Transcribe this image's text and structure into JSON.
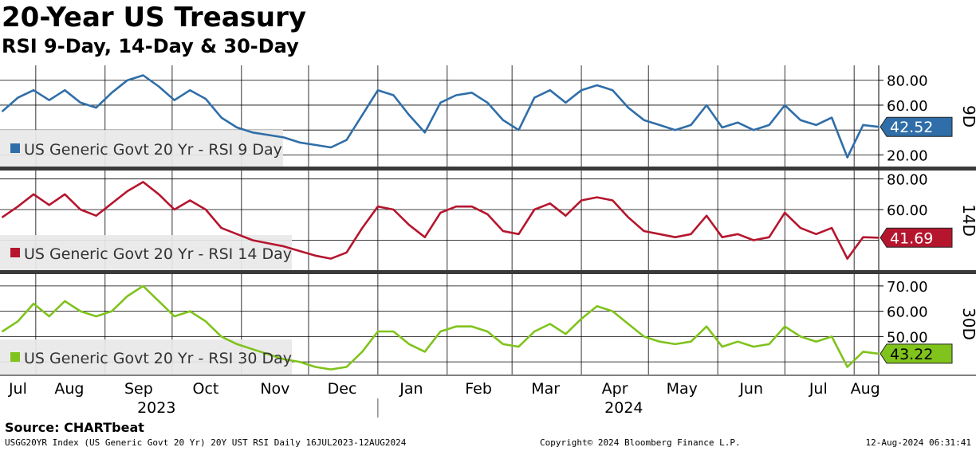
{
  "header": {
    "title": "20-Year US Treasury",
    "subtitle": "RSI 9-Day, 14-Day & 30-Day"
  },
  "footer": {
    "source": "Source: CHARTbeat",
    "ticker_info": "USGG20YR Index (US Generic Govt 20 Yr) 20Y UST RSI  Daily 16JUL2023-12AUG2024",
    "copyright": "Copyright© 2024 Bloomberg Finance L.P.",
    "timestamp": "12-Aug-2024 06:31:41"
  },
  "colors": {
    "rsi9": "#2f6ea8",
    "rsi14": "#b5162e",
    "rsi30": "#7fc31c",
    "grid": "#000000",
    "separator": "#3a3a3a",
    "legend_bg": "#e8e8e8"
  },
  "chart_data": {
    "type": "line",
    "x_axis": {
      "months": [
        "Jul",
        "Aug",
        "Sep",
        "Oct",
        "Nov",
        "Dec",
        "Jan",
        "Feb",
        "Mar",
        "Apr",
        "May",
        "Jun",
        "Jul",
        "Aug"
      ],
      "years": [
        "2023",
        "2024"
      ],
      "range": [
        "2023-07-16",
        "2024-08-12"
      ]
    },
    "x": [
      "2023-07-17",
      "2023-07-24",
      "2023-07-31",
      "2023-08-07",
      "2023-08-14",
      "2023-08-21",
      "2023-08-28",
      "2023-09-04",
      "2023-09-11",
      "2023-09-18",
      "2023-09-25",
      "2023-10-02",
      "2023-10-09",
      "2023-10-16",
      "2023-10-23",
      "2023-10-30",
      "2023-11-06",
      "2023-11-13",
      "2023-11-20",
      "2023-11-27",
      "2023-12-04",
      "2023-12-11",
      "2023-12-18",
      "2023-12-25",
      "2024-01-01",
      "2024-01-08",
      "2024-01-15",
      "2024-01-22",
      "2024-01-29",
      "2024-02-05",
      "2024-02-12",
      "2024-02-19",
      "2024-02-26",
      "2024-03-04",
      "2024-03-11",
      "2024-03-18",
      "2024-03-25",
      "2024-04-01",
      "2024-04-08",
      "2024-04-15",
      "2024-04-22",
      "2024-04-29",
      "2024-05-06",
      "2024-05-13",
      "2024-05-20",
      "2024-05-27",
      "2024-06-03",
      "2024-06-10",
      "2024-06-17",
      "2024-06-24",
      "2024-07-01",
      "2024-07-08",
      "2024-07-15",
      "2024-07-22",
      "2024-07-29",
      "2024-08-05",
      "2024-08-12"
    ],
    "panels": [
      {
        "id": "rsi9",
        "axis_tag": "9D",
        "legend": "US Generic Govt 20 Yr - RSI 9 Day",
        "last_value": "42.52",
        "ylim": [
          10,
          92
        ],
        "yticks": [
          "80.00",
          "60.00",
          "20.00"
        ],
        "ytick_values": [
          80,
          60,
          20
        ],
        "gridlines": [
          80,
          60,
          40,
          20
        ],
        "values": [
          55,
          66,
          72,
          64,
          72,
          62,
          58,
          70,
          80,
          84,
          75,
          64,
          72,
          65,
          50,
          42,
          38,
          36,
          34,
          30,
          28,
          26,
          32,
          52,
          72,
          68,
          52,
          38,
          62,
          68,
          70,
          62,
          48,
          40,
          66,
          72,
          62,
          72,
          76,
          72,
          58,
          48,
          44,
          40,
          44,
          60,
          42,
          46,
          40,
          44,
          60,
          48,
          44,
          50,
          18,
          44,
          42.52
        ]
      },
      {
        "id": "rsi14",
        "axis_tag": "14D",
        "legend": "US Generic Govt 20 Yr - RSI 14 Day",
        "last_value": "41.69",
        "ylim": [
          20,
          86
        ],
        "yticks": [
          "80.00",
          "60.00"
        ],
        "ytick_values": [
          80,
          60
        ],
        "gridlines": [
          80,
          60,
          40
        ],
        "values": [
          55,
          62,
          70,
          63,
          70,
          60,
          56,
          64,
          72,
          78,
          70,
          60,
          66,
          60,
          48,
          44,
          40,
          38,
          36,
          33,
          30,
          28,
          32,
          48,
          62,
          60,
          50,
          42,
          58,
          62,
          62,
          57,
          46,
          44,
          60,
          64,
          56,
          66,
          68,
          66,
          55,
          46,
          44,
          42,
          44,
          56,
          42,
          44,
          40,
          42,
          58,
          48,
          44,
          48,
          28,
          42,
          41.69
        ]
      },
      {
        "id": "rsi30",
        "axis_tag": "30D",
        "legend": "US Generic Govt 20 Yr - RSI 30 Day",
        "last_value": "43.22",
        "ylim": [
          35,
          75
        ],
        "yticks": [
          "70.00",
          "60.00",
          "50.00"
        ],
        "ytick_values": [
          70,
          60,
          50
        ],
        "gridlines": [
          70,
          60,
          50,
          40
        ],
        "values": [
          52,
          56,
          63,
          58,
          64,
          60,
          58,
          60,
          66,
          70,
          64,
          58,
          60,
          56,
          50,
          47,
          45,
          43,
          41,
          40,
          38,
          37,
          38,
          44,
          52,
          52,
          47,
          44,
          52,
          54,
          54,
          52,
          47,
          46,
          52,
          55,
          51,
          57,
          62,
          60,
          55,
          50,
          48,
          47,
          48,
          54,
          46,
          48,
          46,
          47,
          54,
          50,
          48,
          50,
          38,
          44,
          43.22
        ]
      }
    ]
  }
}
